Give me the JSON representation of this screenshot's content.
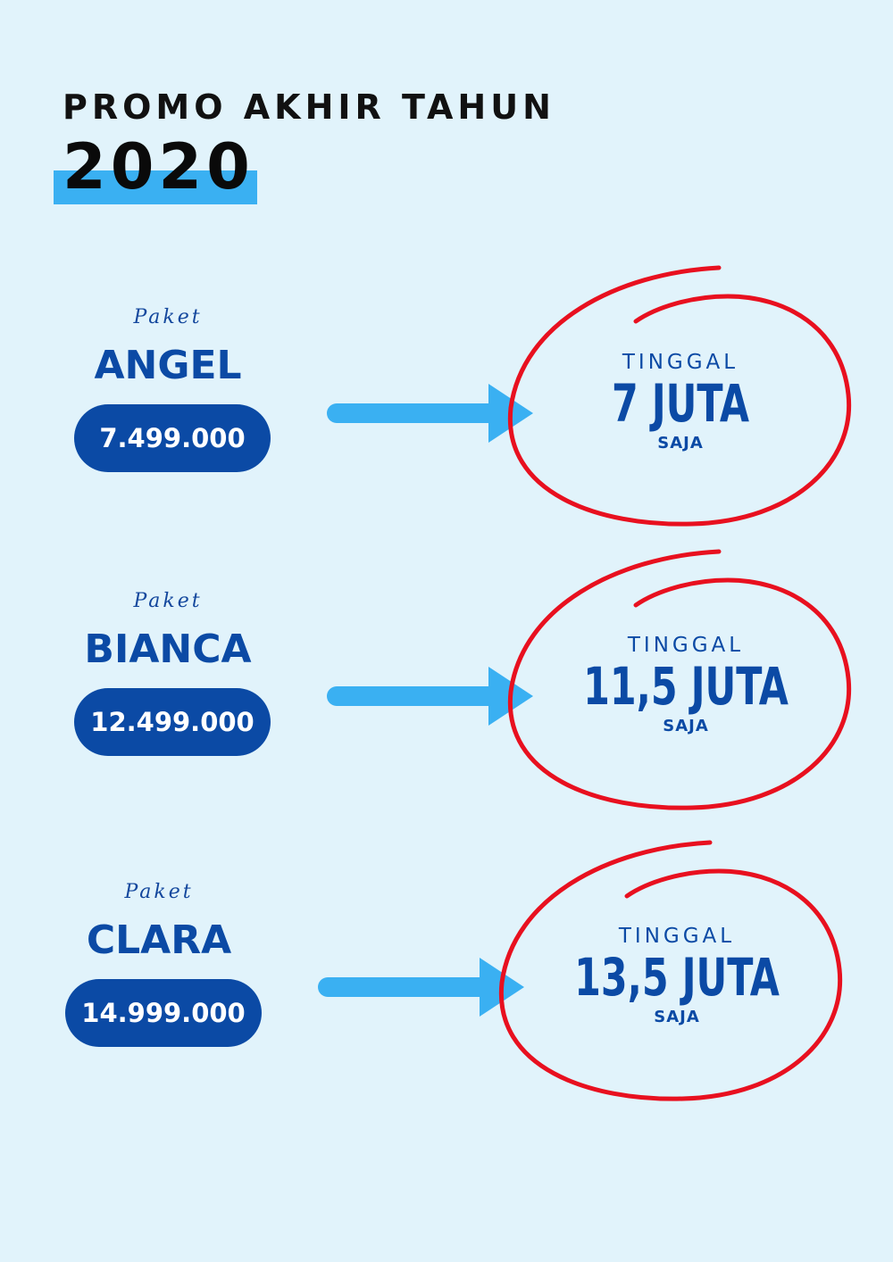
{
  "header": {
    "title": "PROMO AKHIR TAHUN",
    "year": "2020"
  },
  "colors": {
    "background": "#e1f3fb",
    "accent_bar": "#3ab0f2",
    "primary_blue": "#0b4aa5",
    "arrow_blue": "#3ab0f2",
    "circle_red": "#e8101f"
  },
  "packages": [
    {
      "kicker": "Paket",
      "name": "ANGEL",
      "price": "7.499.000",
      "promo_top": "TINGGAL",
      "promo_main": "7 JUTA",
      "promo_bottom": "SAJA"
    },
    {
      "kicker": "Paket",
      "name": "BIANCA",
      "price": "12.499.000",
      "promo_top": "TINGGAL",
      "promo_main": "11,5 JUTA",
      "promo_bottom": "SAJA"
    },
    {
      "kicker": "Paket",
      "name": "CLARA",
      "price": "14.999.000",
      "promo_top": "TINGGAL",
      "promo_main": "13,5 JUTA",
      "promo_bottom": "SAJA"
    }
  ]
}
